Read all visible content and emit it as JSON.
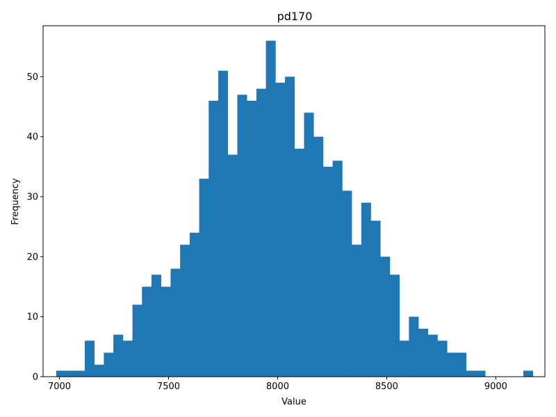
{
  "chart_data": {
    "type": "bar",
    "subtype": "histogram",
    "title": "pd170",
    "xlabel": "Value",
    "ylabel": "Frequency",
    "x_ticks": [
      7000,
      7500,
      8000,
      8500,
      9000
    ],
    "y_ticks": [
      0,
      10,
      20,
      30,
      40,
      50
    ],
    "xlim": [
      6925,
      9225
    ],
    "ylim": [
      0,
      58.5
    ],
    "bin_start": 6985,
    "bin_width": 43.7,
    "values": [
      1,
      1,
      1,
      6,
      2,
      4,
      7,
      6,
      12,
      15,
      17,
      15,
      18,
      22,
      24,
      33,
      46,
      51,
      37,
      47,
      46,
      48,
      56,
      49,
      50,
      38,
      44,
      40,
      35,
      36,
      31,
      22,
      29,
      26,
      20,
      17,
      6,
      10,
      8,
      7,
      6,
      4,
      4,
      1,
      1,
      0,
      0,
      0,
      0,
      1
    ],
    "bar_color": "#1f77b4",
    "grid": false,
    "legend": "none"
  }
}
